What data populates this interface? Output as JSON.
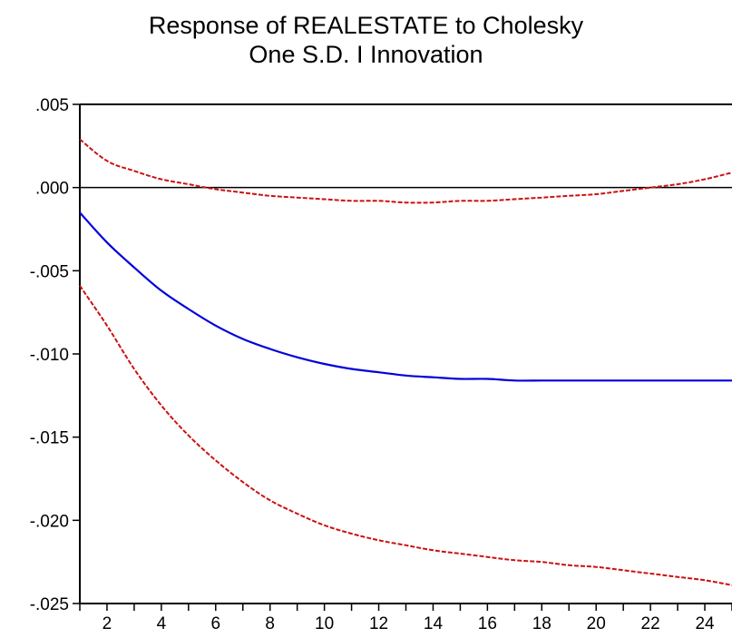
{
  "chart_data": {
    "type": "line",
    "title_line1": "Response of REALESTATE to Cholesky",
    "title_line2": "One S.D. I Innovation",
    "xlabel": "",
    "ylabel": "",
    "xlim": [
      1,
      25
    ],
    "ylim": [
      -0.025,
      0.005
    ],
    "y_ticks": [
      {
        "value": 0.005,
        "label": ".005"
      },
      {
        "value": 0.0,
        "label": ".000"
      },
      {
        "value": -0.005,
        "label": "-.005"
      },
      {
        "value": -0.01,
        "label": "-.010"
      },
      {
        "value": -0.015,
        "label": "-.015"
      },
      {
        "value": -0.02,
        "label": "-.020"
      },
      {
        "value": -0.025,
        "label": "-.025"
      }
    ],
    "x_tick_labels": [
      {
        "value": 2,
        "label": "2"
      },
      {
        "value": 4,
        "label": "4"
      },
      {
        "value": 6,
        "label": "6"
      },
      {
        "value": 8,
        "label": "8"
      },
      {
        "value": 10,
        "label": "10"
      },
      {
        "value": 12,
        "label": "12"
      },
      {
        "value": 14,
        "label": "14"
      },
      {
        "value": 16,
        "label": "16"
      },
      {
        "value": 18,
        "label": "18"
      },
      {
        "value": 20,
        "label": "20"
      },
      {
        "value": 22,
        "label": "22"
      },
      {
        "value": 24,
        "label": "24"
      }
    ],
    "zero_line": 0,
    "legend": "none",
    "grid": false,
    "x": [
      1,
      2,
      3,
      4,
      5,
      6,
      7,
      8,
      9,
      10,
      11,
      12,
      13,
      14,
      15,
      16,
      17,
      18,
      19,
      20,
      21,
      22,
      23,
      24,
      25
    ],
    "series": [
      {
        "role": "response",
        "color": "#0000dd",
        "dash": "solid",
        "values": [
          -0.0015,
          -0.0033,
          -0.0048,
          -0.0062,
          -0.0073,
          -0.0083,
          -0.0091,
          -0.0097,
          -0.0102,
          -0.0106,
          -0.0109,
          -0.0111,
          -0.0113,
          -0.0114,
          -0.0115,
          -0.0115,
          -0.0116,
          -0.0116,
          -0.0116,
          -0.0116,
          -0.0116,
          -0.0116,
          -0.0116,
          -0.0116,
          -0.0116
        ]
      },
      {
        "role": "upper-band",
        "color": "#cc1111",
        "dash": "dashed",
        "values": [
          0.0029,
          0.0016,
          0.001,
          0.0005,
          0.0002,
          -0.0001,
          -0.0003,
          -0.0005,
          -0.0006,
          -0.0007,
          -0.0008,
          -0.0008,
          -0.0009,
          -0.0009,
          -0.0008,
          -0.0008,
          -0.0007,
          -0.0006,
          -0.0005,
          -0.0004,
          -0.0002,
          0.0,
          0.0002,
          0.0005,
          0.0009
        ]
      },
      {
        "role": "lower-band",
        "color": "#cc1111",
        "dash": "dashed",
        "values": [
          -0.0059,
          -0.0083,
          -0.0109,
          -0.0131,
          -0.0149,
          -0.0164,
          -0.0177,
          -0.0188,
          -0.0196,
          -0.0203,
          -0.0208,
          -0.0212,
          -0.0215,
          -0.0218,
          -0.022,
          -0.0222,
          -0.0224,
          -0.0225,
          -0.0227,
          -0.0228,
          -0.023,
          -0.0232,
          -0.0234,
          -0.0236,
          -0.0239
        ]
      }
    ]
  }
}
